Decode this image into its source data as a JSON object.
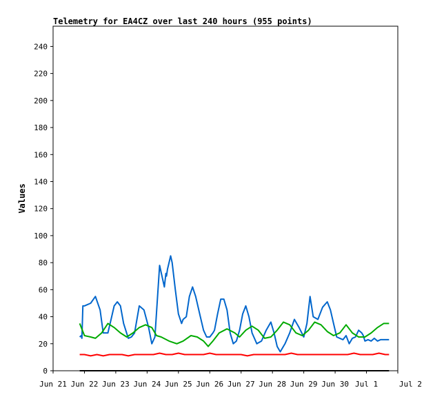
{
  "chart_data": {
    "type": "line",
    "title": "Telemetry for EA4CZ over last 240 hours (955 points)",
    "ylabel": "Values",
    "xlabel": "",
    "ylim": [
      0,
      255
    ],
    "xlim": [
      0,
      11
    ],
    "yticks": [
      0,
      20,
      40,
      60,
      80,
      100,
      120,
      140,
      160,
      180,
      200,
      220,
      240
    ],
    "ytick_labels": [
      "0",
      "20",
      "40",
      "60",
      "80",
      "100",
      "120",
      "140",
      "160",
      "180",
      "200",
      "220",
      "240"
    ],
    "xticks": [
      0,
      1,
      2,
      3,
      4,
      5,
      6,
      7,
      8,
      9,
      10,
      11
    ],
    "xtick_labels": [
      "Jun 21",
      "Jun 22",
      "Jun 23",
      "Jun 24",
      "Jun 25",
      "Jun 26",
      "Jun 27",
      "Jun 28",
      "Jun 29",
      "Jun 30",
      "Jul 1",
      "Jul 2"
    ],
    "grid": false,
    "series": [
      {
        "color": "#0066cc",
        "x": [
          0.85,
          0.9,
          0.92,
          0.95,
          1.0,
          1.1,
          1.2,
          1.35,
          1.5,
          1.6,
          1.75,
          1.85,
          1.95,
          2.05,
          2.15,
          2.25,
          2.4,
          2.5,
          2.6,
          2.75,
          2.9,
          3.05,
          3.15,
          3.25,
          3.4,
          3.55,
          3.6,
          3.62,
          3.65,
          3.7,
          3.75,
          3.8,
          3.85,
          3.9,
          4.0,
          4.1,
          4.15,
          4.25,
          4.35,
          4.45,
          4.55,
          4.7,
          4.8,
          4.9,
          5.0,
          5.1,
          5.15,
          5.25,
          5.35,
          5.45,
          5.55,
          5.65,
          5.75,
          5.85,
          5.95,
          6.05,
          6.15,
          6.25,
          6.35,
          6.5,
          6.65,
          6.8,
          6.95,
          7.05,
          7.15,
          7.25,
          7.4,
          7.55,
          7.7,
          7.85,
          8.0,
          8.1,
          8.2,
          8.3,
          8.45,
          8.6,
          8.75,
          8.85,
          8.95,
          9.05,
          9.15,
          9.25,
          9.35,
          9.45,
          9.55,
          9.65,
          9.75,
          9.85,
          9.9,
          9.95,
          10.05,
          10.15,
          10.25,
          10.35,
          10.45,
          10.55,
          10.65,
          10.72
        ],
        "values": [
          25,
          26,
          24,
          48,
          48,
          49,
          50,
          55,
          45,
          28,
          28,
          38,
          48,
          51,
          48,
          35,
          24,
          25,
          28,
          48,
          45,
          32,
          20,
          25,
          78,
          62,
          72,
          70,
          75,
          80,
          85,
          80,
          70,
          60,
          42,
          35,
          38,
          40,
          55,
          62,
          55,
          40,
          30,
          25,
          25,
          28,
          30,
          42,
          53,
          53,
          45,
          28,
          20,
          22,
          30,
          42,
          48,
          40,
          28,
          20,
          22,
          30,
          36,
          28,
          18,
          14,
          20,
          28,
          38,
          32,
          25,
          35,
          55,
          40,
          38,
          47,
          51,
          45,
          35,
          25,
          24,
          23,
          26,
          20,
          24,
          25,
          30,
          28,
          26,
          22,
          23,
          22,
          24,
          22,
          23,
          23,
          23,
          23
        ]
      },
      {
        "color": "#00aa00",
        "x": [
          0.85,
          1.0,
          1.2,
          1.35,
          1.55,
          1.75,
          1.95,
          2.15,
          2.35,
          2.55,
          2.75,
          2.95,
          3.15,
          3.3,
          3.45,
          3.7,
          3.95,
          4.15,
          4.4,
          4.6,
          4.8,
          4.95,
          5.1,
          5.3,
          5.55,
          5.8,
          5.95,
          6.15,
          6.35,
          6.55,
          6.75,
          6.95,
          7.15,
          7.35,
          7.55,
          7.75,
          7.95,
          8.15,
          8.35,
          8.55,
          8.75,
          8.95,
          9.15,
          9.35,
          9.55,
          9.75,
          9.95,
          10.15,
          10.35,
          10.55,
          10.72
        ],
        "values": [
          35,
          26,
          25,
          24,
          28,
          35,
          32,
          28,
          25,
          28,
          32,
          34,
          32,
          26,
          25,
          22,
          20,
          22,
          26,
          25,
          22,
          18,
          22,
          28,
          31,
          28,
          25,
          30,
          33,
          30,
          24,
          25,
          30,
          36,
          34,
          28,
          26,
          30,
          36,
          34,
          29,
          26,
          28,
          34,
          28,
          25,
          25,
          28,
          32,
          35,
          35
        ]
      },
      {
        "color": "#ff0000",
        "x": [
          0.85,
          1.0,
          1.2,
          1.4,
          1.6,
          1.8,
          2.0,
          2.2,
          2.4,
          2.6,
          2.8,
          3.0,
          3.2,
          3.4,
          3.6,
          3.8,
          4.0,
          4.2,
          4.4,
          4.6,
          4.8,
          5.0,
          5.2,
          5.4,
          5.6,
          5.8,
          6.0,
          6.2,
          6.4,
          6.6,
          6.8,
          7.0,
          7.2,
          7.4,
          7.6,
          7.8,
          8.0,
          8.2,
          8.4,
          8.6,
          8.8,
          9.0,
          9.2,
          9.4,
          9.6,
          9.8,
          10.0,
          10.2,
          10.4,
          10.6,
          10.72
        ],
        "values": [
          12,
          12,
          11,
          12,
          11,
          12,
          12,
          12,
          11,
          12,
          12,
          12,
          12,
          13,
          12,
          12,
          13,
          12,
          12,
          12,
          12,
          13,
          12,
          12,
          12,
          12,
          12,
          11,
          12,
          12,
          12,
          12,
          12,
          12,
          13,
          12,
          12,
          12,
          12,
          12,
          12,
          12,
          12,
          12,
          13,
          12,
          12,
          12,
          13,
          12,
          12
        ]
      },
      {
        "color": "#000000",
        "x": [
          0.85,
          10.72
        ],
        "values": [
          0,
          0
        ]
      }
    ]
  }
}
